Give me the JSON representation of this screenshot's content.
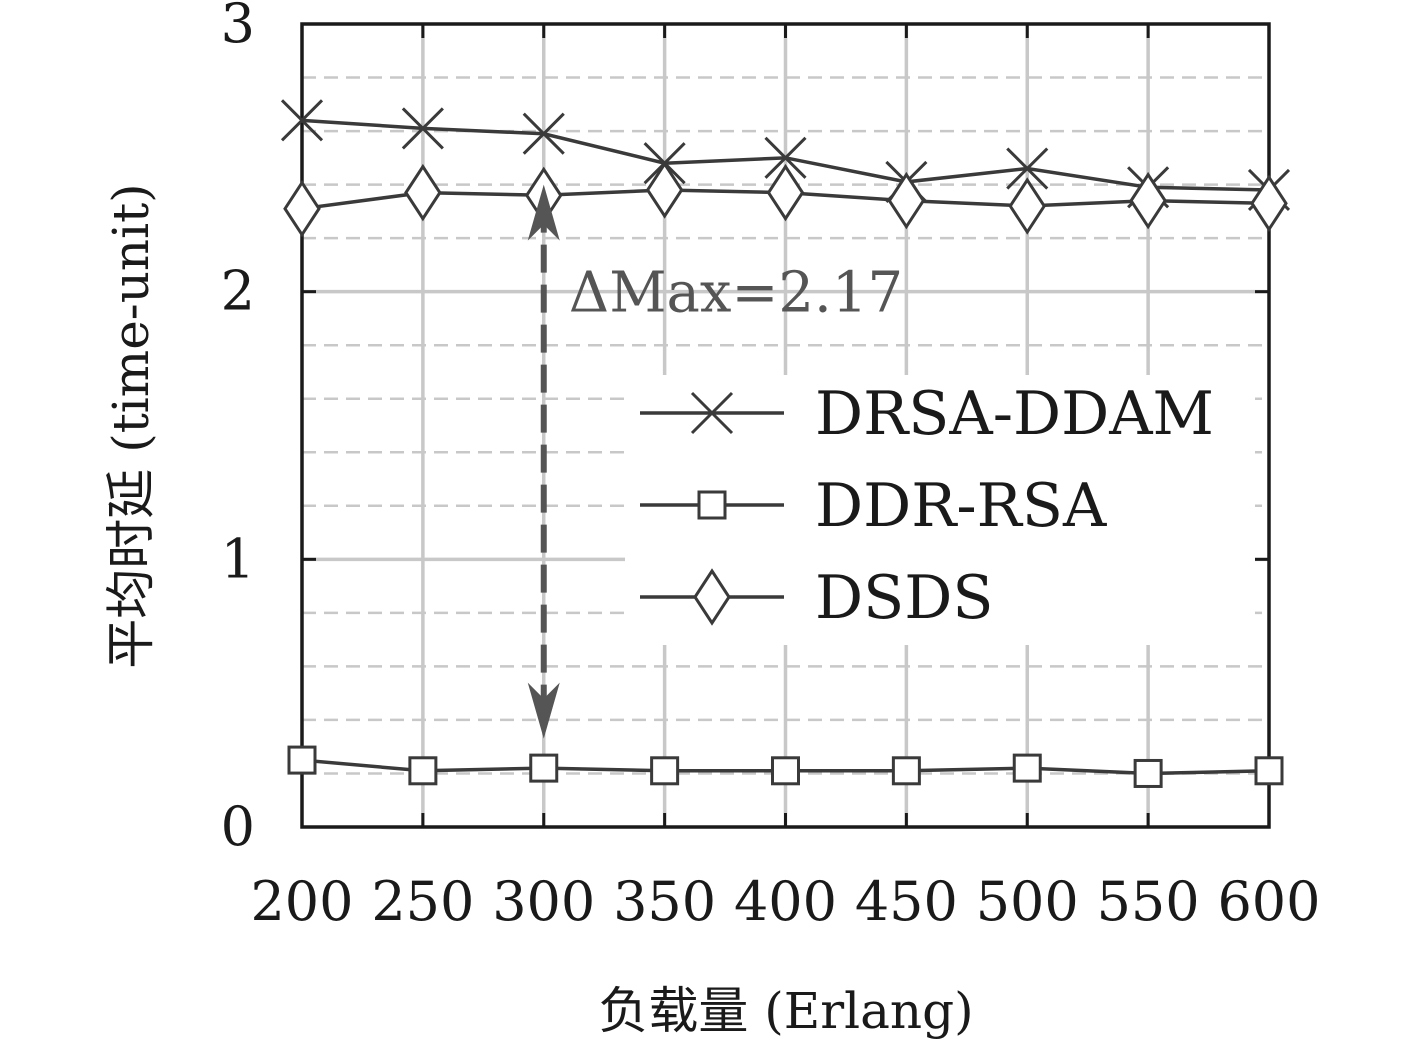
{
  "chart_data": {
    "type": "line",
    "xlabel": "负载量 (Erlang)",
    "ylabel": "平均时延 (time-unit)",
    "x": [
      200,
      250,
      300,
      350,
      400,
      450,
      500,
      550,
      600
    ],
    "xlim": [
      200,
      600
    ],
    "ylim": [
      0,
      3
    ],
    "yticks": [
      0,
      1,
      2,
      3
    ],
    "grid": true,
    "legend_position": "center-right",
    "series": [
      {
        "name": "DRSA-DDAM",
        "marker": "x",
        "values": [
          2.64,
          2.61,
          2.59,
          2.48,
          2.5,
          2.41,
          2.46,
          2.39,
          2.38
        ]
      },
      {
        "name": "DDR-RSA",
        "marker": "square",
        "values": [
          0.25,
          0.21,
          0.22,
          0.21,
          0.21,
          0.21,
          0.22,
          0.2,
          0.21
        ]
      },
      {
        "name": "DSDS",
        "marker": "diamond",
        "values": [
          2.31,
          2.37,
          2.36,
          2.38,
          2.37,
          2.34,
          2.32,
          2.34,
          2.33
        ]
      }
    ],
    "annotation": {
      "text": "ΔMax=2.17",
      "x": 300,
      "y_from": 2.4,
      "y_to": 0.33
    }
  },
  "colors": {
    "line": "#3a3a3a",
    "grid": "#c8c8c8",
    "annotation": "#555555"
  }
}
